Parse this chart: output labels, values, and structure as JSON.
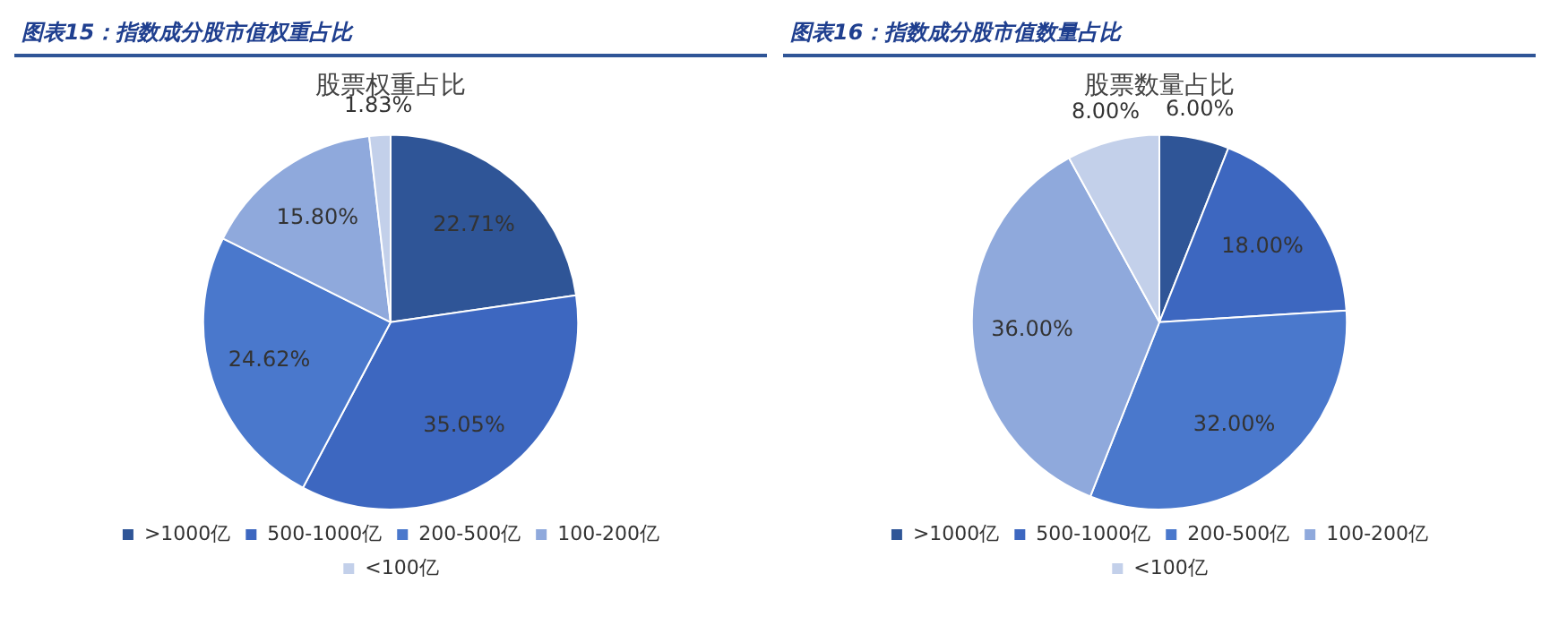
{
  "chart_data": [
    {
      "type": "pie",
      "title": "图表15：指数成分股市值权重占比",
      "subtitle": "股票权重占比",
      "categories": [
        ">1000亿",
        "500-1000亿",
        "200-500亿",
        "100-200亿",
        "<100亿"
      ],
      "values": [
        22.71,
        35.05,
        24.62,
        15.8,
        1.83
      ],
      "value_labels": [
        "22.71%",
        "35.05%",
        "24.62%",
        "15.80%",
        "1.83%"
      ],
      "colors": [
        "#2f5597",
        "#3d67c0",
        "#4a78cc",
        "#8fa9dc",
        "#c3d0ea"
      ],
      "legend": "bottom"
    },
    {
      "type": "pie",
      "title": "图表16：指数成分股市值数量占比",
      "subtitle": "股票数量占比",
      "categories": [
        ">1000亿",
        "500-1000亿",
        "200-500亿",
        "100-200亿",
        "<100亿"
      ],
      "values": [
        6.0,
        18.0,
        32.0,
        36.0,
        8.0
      ],
      "value_labels": [
        "6.00%",
        "18.00%",
        "32.00%",
        "36.00%",
        "8.00%"
      ],
      "colors": [
        "#2f5597",
        "#3d67c0",
        "#4a78cc",
        "#8fa9dc",
        "#c3d0ea"
      ],
      "legend": "bottom"
    }
  ]
}
